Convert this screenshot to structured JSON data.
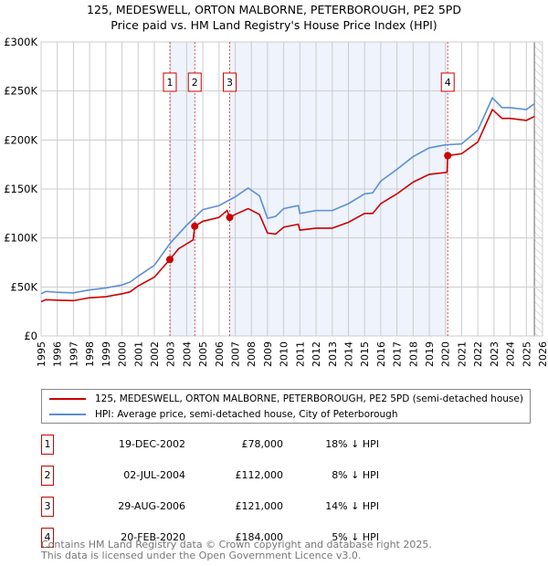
{
  "title_line1": "125, MEDESWELL, ORTON MALBORNE, PETERBOROUGH, PE2 5PD",
  "title_line2": "Price paid vs. HM Land Registry's House Price Index (HPI)",
  "chart_data": {
    "type": "line",
    "ylim": [
      0,
      300000
    ],
    "xlim": [
      1995,
      2026
    ],
    "yticks": [
      {
        "v": 0,
        "label": "£0"
      },
      {
        "v": 50000,
        "label": "£50K"
      },
      {
        "v": 100000,
        "label": "£100K"
      },
      {
        "v": 150000,
        "label": "£150K"
      },
      {
        "v": 200000,
        "label": "£200K"
      },
      {
        "v": 250000,
        "label": "£250K"
      },
      {
        "v": 300000,
        "label": "£300K"
      }
    ],
    "xticks": [
      "1995",
      "1996",
      "1997",
      "1998",
      "1999",
      "2000",
      "2001",
      "2002",
      "2003",
      "2004",
      "2005",
      "2006",
      "2007",
      "2008",
      "2009",
      "2010",
      "2011",
      "2012",
      "2013",
      "2014",
      "2015",
      "2016",
      "2017",
      "2018",
      "2019",
      "2020",
      "2021",
      "2022",
      "2023",
      "2024",
      "2025",
      "2026"
    ],
    "grid": true,
    "colors": {
      "property": "#cc0000",
      "hpi": "#5b8fd6",
      "shade": "#eef3fc"
    },
    "shaded_ranges": [
      [
        2002.96,
        2004.5
      ],
      [
        2006.66,
        2020.14
      ]
    ],
    "future_hatch_from": 2025.5,
    "series": [
      {
        "name": "125, MEDESWELL, ORTON MALBORNE, PETERBOROUGH, PE2 5PD (semi-detached house)",
        "key": "property",
        "x": [
          1995,
          1995.3,
          1996,
          1997,
          1998,
          1999,
          2000,
          2000.5,
          2001,
          2002,
          2002.96,
          2003.5,
          2004.4,
          2004.5,
          2005,
          2006,
          2006.5,
          2006.66,
          2007,
          2007.8,
          2008.5,
          2009,
          2009.5,
          2010,
          2010.9,
          2011,
          2012,
          2013,
          2014,
          2015,
          2015.5,
          2016,
          2017,
          2018,
          2019,
          2020.1,
          2020.14,
          2021,
          2022,
          2022.9,
          2023.5,
          2024,
          2025,
          2025.5
        ],
        "y": [
          35000,
          37000,
          36500,
          36000,
          39000,
          40000,
          43000,
          45000,
          51000,
          60000,
          78000,
          89000,
          98000,
          112000,
          117000,
          121000,
          128000,
          121000,
          124000,
          130000,
          124000,
          105000,
          104000,
          111000,
          114000,
          108000,
          110000,
          110000,
          116000,
          125000,
          125000,
          135000,
          145000,
          157000,
          165000,
          167000,
          184000,
          186000,
          198000,
          231000,
          222000,
          222000,
          220000,
          224000
        ]
      },
      {
        "name": "HPI: Average price, semi-detached house, City of Peterborough",
        "key": "hpi",
        "x": [
          1995,
          1995.3,
          1996,
          1997,
          1998,
          1999,
          2000,
          2000.5,
          2001,
          2002,
          2003,
          2004,
          2005,
          2006,
          2007,
          2007.8,
          2008.5,
          2009,
          2009.5,
          2010,
          2010.9,
          2011,
          2012,
          2013,
          2014,
          2015,
          2015.5,
          2016,
          2017,
          2018,
          2019,
          2020,
          2021,
          2022,
          2022.9,
          2023.5,
          2024,
          2025,
          2025.5
        ],
        "y": [
          43000,
          45500,
          44500,
          44000,
          47000,
          49000,
          52000,
          55000,
          61000,
          72000,
          95000,
          113000,
          129000,
          133000,
          142000,
          151000,
          143000,
          120000,
          122000,
          130000,
          133000,
          125000,
          128000,
          128000,
          135000,
          145000,
          146000,
          158000,
          170000,
          183000,
          192000,
          195000,
          196000,
          210000,
          243000,
          233000,
          233000,
          231000,
          237000
        ]
      }
    ],
    "sales": [
      {
        "n": "1",
        "x": 2002.96,
        "y": 78000,
        "date": "19-DEC-2002",
        "price": "£78,000",
        "hpi": "18% ↓ HPI"
      },
      {
        "n": "2",
        "x": 2004.5,
        "y": 112000,
        "date": "02-JUL-2004",
        "price": "£112,000",
        "hpi": "8% ↓ HPI"
      },
      {
        "n": "3",
        "x": 2006.66,
        "y": 121000,
        "date": "29-AUG-2006",
        "price": "£121,000",
        "hpi": "14% ↓ HPI"
      },
      {
        "n": "4",
        "x": 2020.14,
        "y": 184000,
        "date": "20-FEB-2020",
        "price": "£184,000",
        "hpi": "5% ↓ HPI"
      }
    ]
  },
  "legend": {
    "property": "125, MEDESWELL, ORTON MALBORNE, PETERBOROUGH, PE2 5PD (semi-detached house)",
    "hpi": "HPI: Average price, semi-detached house, City of Peterborough"
  },
  "footer": {
    "line1": "Contains HM Land Registry data © Crown copyright and database right 2025.",
    "line2": "This data is licensed under the Open Government Licence v3.0."
  }
}
